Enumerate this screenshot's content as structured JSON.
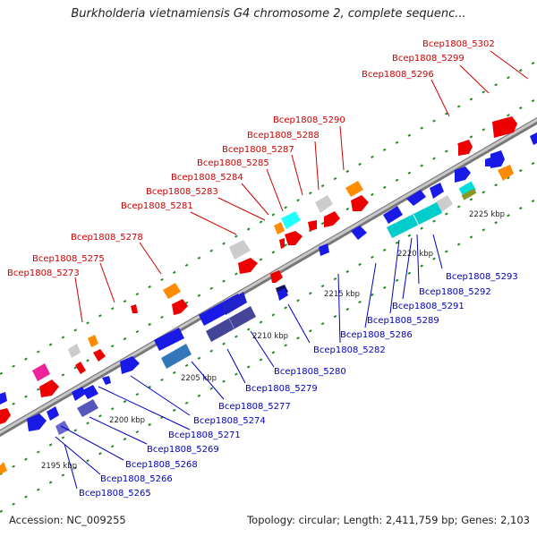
{
  "title": "Burkholderia vietnamiensis G4 chromosome 2, complete sequenc...",
  "footer": {
    "accession": "Accession: NC_009255",
    "summary": "Topology: circular; Length: 2,411,759 bp; Genes: 2,103"
  },
  "colors": {
    "top_label": "#cc0000",
    "bottom_label": "#0000bb",
    "backbone": "#999999",
    "tick": "#228822"
  },
  "ticks": [
    "2195 kbp",
    "2200 kbp",
    "2205 kbp",
    "2210 kbp",
    "2215 kbp",
    "2220 kbp",
    "2225 kbp"
  ],
  "top_labels": [
    "Bcep1808_5302",
    "Bcep1808_5299",
    "Bcep1808_5296",
    "Bcep1808_5290",
    "Bcep1808_5288",
    "Bcep1808_5287",
    "Bcep1808_5285",
    "Bcep1808_5284",
    "Bcep1808_5283",
    "Bcep1808_5281",
    "Bcep1808_5278",
    "Bcep1808_5275",
    "Bcep1808_5273"
  ],
  "bottom_labels": [
    "Bcep1808_5293",
    "Bcep1808_5292",
    "Bcep1808_5291",
    "Bcep1808_5289",
    "Bcep1808_5286",
    "Bcep1808_5282",
    "Bcep1808_5280",
    "Bcep1808_5279",
    "Bcep1808_5277",
    "Bcep1808_5274",
    "Bcep1808_5271",
    "Bcep1808_5269",
    "Bcep1808_5268",
    "Bcep1808_5266",
    "Bcep1808_5265"
  ]
}
